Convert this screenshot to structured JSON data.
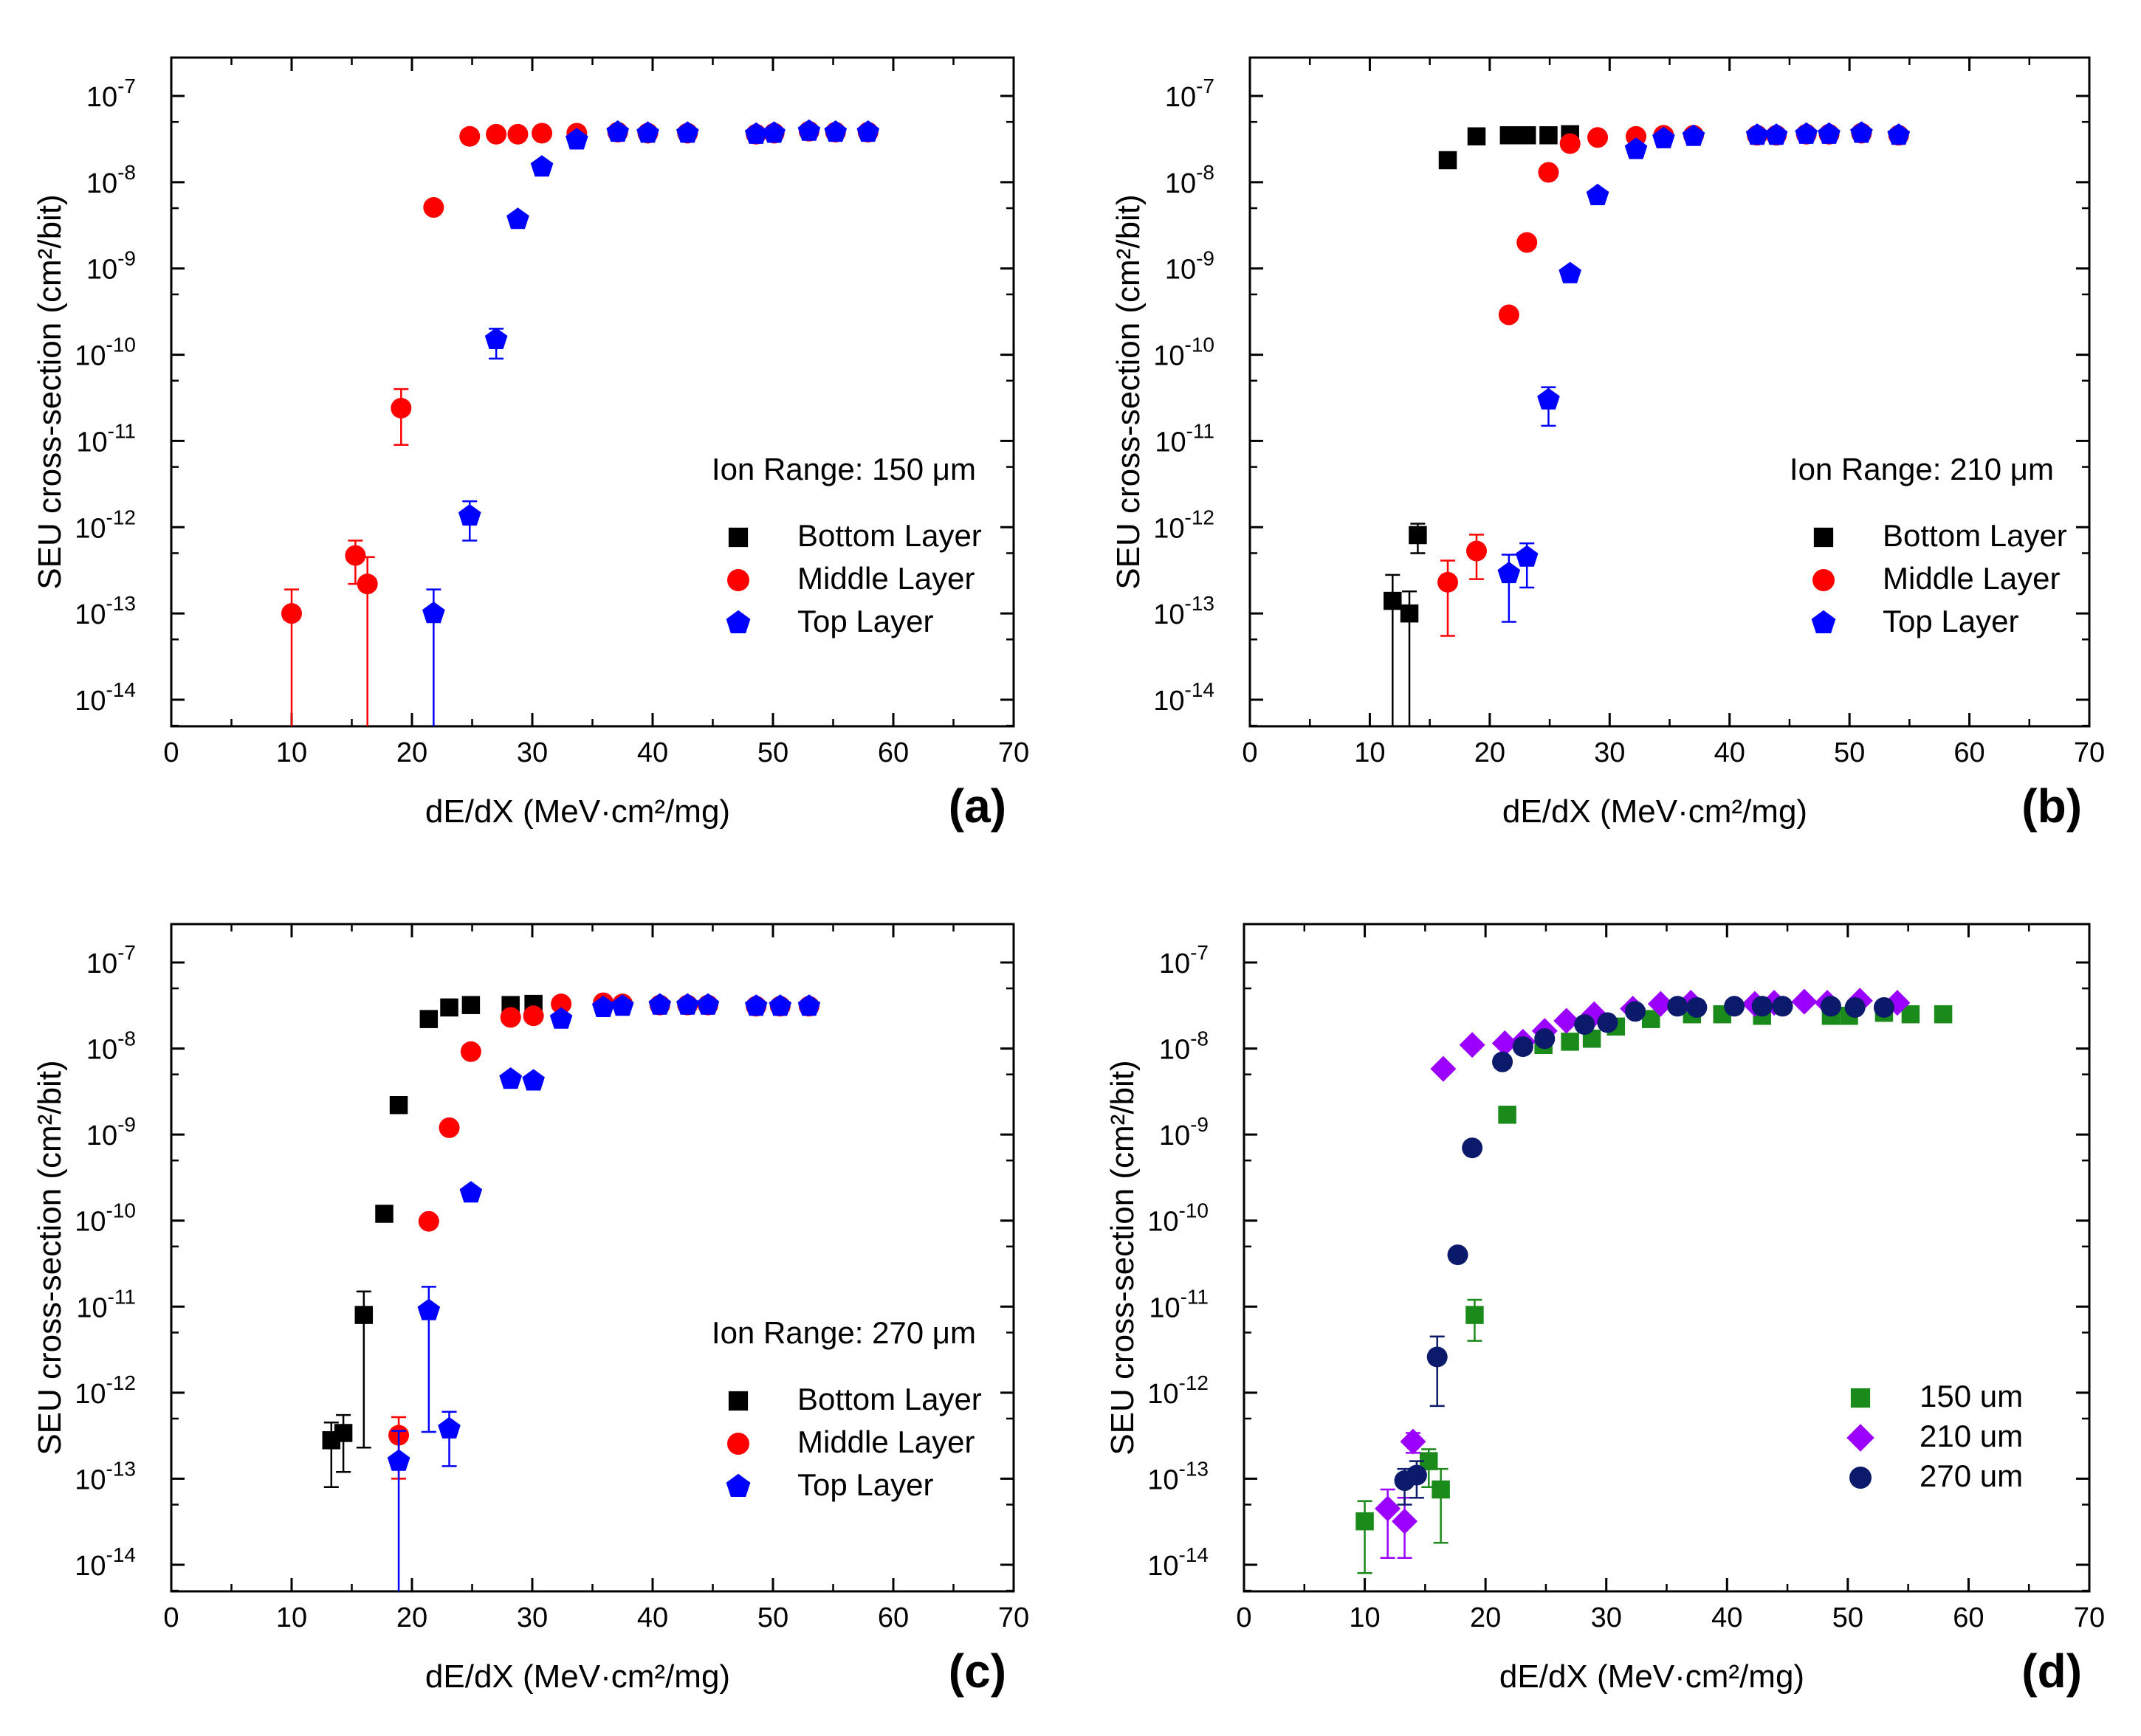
{
  "chart_data": [
    {
      "type": "scatter",
      "panel_label": "(a)",
      "annotation": "Ion Range: 150 μm",
      "xlabel": "dE/dX (MeV·cm²/mg)",
      "ylabel": "SEU cross-section (cm²/bit)",
      "xlim": [
        0,
        70
      ],
      "ylim": [
        5e-15,
        2e-07
      ],
      "yscale": "log",
      "legend_position": "lower-right",
      "series": [
        {
          "name": "Bottom Layer",
          "marker": "square",
          "color": "#000000",
          "points": []
        },
        {
          "name": "Middle Layer",
          "marker": "circle",
          "color": "#ff0000",
          "points": [
            {
              "x": 10,
              "y": 1e-13,
              "err_lo": 0,
              "err_hi": 1.9e-13
            },
            {
              "x": 15.3,
              "y": 4.7e-13,
              "err_lo": 2.2e-13,
              "err_hi": 7e-13
            },
            {
              "x": 16.3,
              "y": 2.2e-13,
              "err_lo": 0,
              "err_hi": 4.5e-13
            },
            {
              "x": 19.1,
              "y": 2.4e-11,
              "err_lo": 9e-12,
              "err_hi": 4e-11
            },
            {
              "x": 21.8,
              "y": 5.1e-09
            },
            {
              "x": 24.8,
              "y": 3.4e-08
            },
            {
              "x": 27.0,
              "y": 3.6e-08
            },
            {
              "x": 28.8,
              "y": 3.6e-08
            },
            {
              "x": 30.8,
              "y": 3.7e-08
            },
            {
              "x": 33.7,
              "y": 3.7e-08
            },
            {
              "x": 37.1,
              "y": 3.8e-08
            },
            {
              "x": 39.6,
              "y": 3.7e-08
            },
            {
              "x": 42.9,
              "y": 3.7e-08
            },
            {
              "x": 48.6,
              "y": 3.6e-08
            },
            {
              "x": 50.1,
              "y": 3.7e-08
            },
            {
              "x": 53.0,
              "y": 3.9e-08
            },
            {
              "x": 55.2,
              "y": 3.8e-08
            },
            {
              "x": 57.9,
              "y": 3.8e-08
            }
          ]
        },
        {
          "name": "Top Layer",
          "marker": "pentagon",
          "color": "#0000ff",
          "points": [
            {
              "x": 21.8,
              "y": 1e-13,
              "err_lo": 0,
              "err_hi": 1.9e-13
            },
            {
              "x": 24.8,
              "y": 1.35e-12,
              "err_lo": 7e-13,
              "err_hi": 2e-12
            },
            {
              "x": 27.0,
              "y": 1.5e-10,
              "err_lo": 9e-11,
              "err_hi": 2e-10
            },
            {
              "x": 28.8,
              "y": 3.7e-09
            },
            {
              "x": 30.8,
              "y": 1.5e-08
            },
            {
              "x": 33.7,
              "y": 3.1e-08
            },
            {
              "x": 37.1,
              "y": 3.8e-08
            },
            {
              "x": 39.6,
              "y": 3.7e-08
            },
            {
              "x": 42.9,
              "y": 3.7e-08
            },
            {
              "x": 48.6,
              "y": 3.6e-08
            },
            {
              "x": 50.1,
              "y": 3.7e-08
            },
            {
              "x": 53.0,
              "y": 3.9e-08
            },
            {
              "x": 55.2,
              "y": 3.8e-08
            },
            {
              "x": 57.9,
              "y": 3.8e-08
            }
          ]
        }
      ]
    },
    {
      "type": "scatter",
      "panel_label": "(b)",
      "annotation": "Ion Range: 210 μm",
      "xlabel": "dE/dX (MeV·cm²/mg)",
      "ylabel": "SEU cross-section (cm²/bit)",
      "xlim": [
        0,
        70
      ],
      "ylim": [
        5e-15,
        2e-07
      ],
      "yscale": "log",
      "legend_position": "lower-right",
      "series": [
        {
          "name": "Bottom Layer",
          "marker": "square",
          "color": "#000000",
          "points": [
            {
              "x": 11.9,
              "y": 1.4e-13,
              "err_lo": 0,
              "err_hi": 2.8e-13
            },
            {
              "x": 13.3,
              "y": 1e-13,
              "err_lo": 0,
              "err_hi": 1.8e-13
            },
            {
              "x": 14.0,
              "y": 8.1e-13,
              "err_lo": 5e-13,
              "err_hi": 1.1e-12
            },
            {
              "x": 16.5,
              "y": 1.8e-08
            },
            {
              "x": 18.9,
              "y": 3.4e-08
            },
            {
              "x": 21.6,
              "y": 3.5e-08
            },
            {
              "x": 23.1,
              "y": 3.5e-08
            },
            {
              "x": 24.9,
              "y": 3.5e-08
            },
            {
              "x": 26.7,
              "y": 3.6e-08
            }
          ]
        },
        {
          "name": "Middle Layer",
          "marker": "circle",
          "color": "#ff0000",
          "points": [
            {
              "x": 16.5,
              "y": 2.3e-13,
              "err_lo": 5.5e-14,
              "err_hi": 4.1e-13
            },
            {
              "x": 18.9,
              "y": 5.3e-13,
              "err_lo": 2.5e-13,
              "err_hi": 8.2e-13
            },
            {
              "x": 21.6,
              "y": 2.9e-10
            },
            {
              "x": 23.1,
              "y": 2e-09
            },
            {
              "x": 24.9,
              "y": 1.3e-08
            },
            {
              "x": 26.7,
              "y": 2.8e-08
            },
            {
              "x": 29.0,
              "y": 3.3e-08
            },
            {
              "x": 32.2,
              "y": 3.4e-08
            },
            {
              "x": 34.5,
              "y": 3.5e-08
            },
            {
              "x": 37.0,
              "y": 3.5e-08
            },
            {
              "x": 42.3,
              "y": 3.5e-08
            },
            {
              "x": 43.9,
              "y": 3.5e-08
            },
            {
              "x": 46.4,
              "y": 3.6e-08
            },
            {
              "x": 48.3,
              "y": 3.6e-08
            },
            {
              "x": 51.0,
              "y": 3.7e-08
            },
            {
              "x": 54.1,
              "y": 3.5e-08
            }
          ]
        },
        {
          "name": "Top Layer",
          "marker": "pentagon",
          "color": "#0000ff",
          "points": [
            {
              "x": 21.6,
              "y": 2.9e-13,
              "err_lo": 8e-14,
              "err_hi": 4.8e-13
            },
            {
              "x": 23.1,
              "y": 4.5e-13,
              "err_lo": 2e-13,
              "err_hi": 6.5e-13
            },
            {
              "x": 24.9,
              "y": 3e-11,
              "err_lo": 1.5e-11,
              "err_hi": 4.2e-11
            },
            {
              "x": 26.7,
              "y": 8.7e-10
            },
            {
              "x": 29.0,
              "y": 7e-09
            },
            {
              "x": 32.2,
              "y": 2.4e-08
            },
            {
              "x": 34.5,
              "y": 3.2e-08
            },
            {
              "x": 37.0,
              "y": 3.4e-08
            },
            {
              "x": 42.3,
              "y": 3.5e-08
            },
            {
              "x": 43.9,
              "y": 3.5e-08
            },
            {
              "x": 46.4,
              "y": 3.6e-08
            },
            {
              "x": 48.3,
              "y": 3.6e-08
            },
            {
              "x": 51.0,
              "y": 3.7e-08
            },
            {
              "x": 54.1,
              "y": 3.5e-08
            }
          ]
        }
      ]
    },
    {
      "type": "scatter",
      "panel_label": "(c)",
      "annotation": "Ion Range: 270 μm",
      "xlabel": "dE/dX (MeV·cm²/mg)",
      "ylabel": "SEU cross-section (cm²/bit)",
      "xlim": [
        0,
        70
      ],
      "ylim": [
        5e-15,
        2e-07
      ],
      "yscale": "log",
      "legend_position": "lower-right",
      "series": [
        {
          "name": "Bottom Layer",
          "marker": "square",
          "color": "#000000",
          "points": [
            {
              "x": 13.3,
              "y": 2.8e-13,
              "err_lo": 8e-14,
              "err_hi": 4.5e-13
            },
            {
              "x": 14.3,
              "y": 3.4e-13,
              "err_lo": 1.2e-13,
              "err_hi": 5.5e-13
            },
            {
              "x": 16.0,
              "y": 8e-12,
              "err_lo": 2.3e-13,
              "err_hi": 1.5e-11
            },
            {
              "x": 17.7,
              "y": 1.2e-10
            },
            {
              "x": 18.9,
              "y": 2.2e-09
            },
            {
              "x": 21.4,
              "y": 2.2e-08
            },
            {
              "x": 23.1,
              "y": 3e-08
            },
            {
              "x": 24.9,
              "y": 3.2e-08
            },
            {
              "x": 28.2,
              "y": 3.2e-08
            },
            {
              "x": 30.1,
              "y": 3.3e-08
            }
          ]
        },
        {
          "name": "Middle Layer",
          "marker": "circle",
          "color": "#ff0000",
          "points": [
            {
              "x": 18.9,
              "y": 3.2e-13,
              "err_lo": 1e-13,
              "err_hi": 5.2e-13
            },
            {
              "x": 21.4,
              "y": 9.8e-11
            },
            {
              "x": 23.1,
              "y": 1.2e-09
            },
            {
              "x": 24.9,
              "y": 9.2e-09
            },
            {
              "x": 28.2,
              "y": 2.3e-08
            },
            {
              "x": 30.1,
              "y": 2.4e-08
            },
            {
              "x": 32.4,
              "y": 3.3e-08
            },
            {
              "x": 35.9,
              "y": 3.4e-08
            },
            {
              "x": 37.5,
              "y": 3.3e-08
            },
            {
              "x": 40.6,
              "y": 3.2e-08
            },
            {
              "x": 42.9,
              "y": 3.2e-08
            },
            {
              "x": 44.6,
              "y": 3.2e-08
            },
            {
              "x": 48.6,
              "y": 3.1e-08
            },
            {
              "x": 50.6,
              "y": 3.1e-08
            },
            {
              "x": 53.0,
              "y": 3.1e-08
            }
          ]
        },
        {
          "name": "Top Layer",
          "marker": "pentagon",
          "color": "#0000ff",
          "points": [
            {
              "x": 18.9,
              "y": 1.6e-13,
              "err_lo": 0,
              "err_hi": 3.6e-13
            },
            {
              "x": 21.4,
              "y": 9e-12,
              "err_lo": 3.5e-13,
              "err_hi": 1.7e-11
            },
            {
              "x": 23.1,
              "y": 3.8e-13,
              "err_lo": 1.4e-13,
              "err_hi": 6e-13
            },
            {
              "x": 24.9,
              "y": 2.1e-10
            },
            {
              "x": 28.2,
              "y": 4.4e-09
            },
            {
              "x": 30.1,
              "y": 4.2e-09
            },
            {
              "x": 32.4,
              "y": 2.2e-08
            },
            {
              "x": 35.9,
              "y": 3e-08
            },
            {
              "x": 37.5,
              "y": 3.1e-08
            },
            {
              "x": 40.6,
              "y": 3.2e-08
            },
            {
              "x": 42.9,
              "y": 3.2e-08
            },
            {
              "x": 44.6,
              "y": 3.2e-08
            },
            {
              "x": 48.6,
              "y": 3.1e-08
            },
            {
              "x": 50.6,
              "y": 3.1e-08
            },
            {
              "x": 53.0,
              "y": 3.1e-08
            }
          ]
        }
      ]
    },
    {
      "type": "scatter",
      "panel_label": "(d)",
      "annotation": "",
      "xlabel": "dE/dX (MeV·cm²/mg)",
      "ylabel": "SEU cross-section (cm²/bit)",
      "xlim": [
        0,
        70
      ],
      "ylim": [
        5e-15,
        2e-07
      ],
      "yscale": "log",
      "legend_position": "lower-right",
      "series": [
        {
          "name": "150 um",
          "marker": "square",
          "color": "#1a8a1a",
          "points": [
            {
              "x": 10.0,
              "y": 3.2e-14,
              "err_lo": 8e-15,
              "err_hi": 5.5e-14
            },
            {
              "x": 15.3,
              "y": 1.6e-13,
              "err_lo": 8e-14,
              "err_hi": 2.2e-13
            },
            {
              "x": 16.3,
              "y": 7.5e-14,
              "err_lo": 1.8e-14,
              "err_hi": 1.3e-13
            },
            {
              "x": 19.1,
              "y": 8e-12,
              "err_lo": 4e-12,
              "err_hi": 1.2e-11
            },
            {
              "x": 21.8,
              "y": 1.7e-09
            },
            {
              "x": 24.8,
              "y": 1.1e-08
            },
            {
              "x": 27.0,
              "y": 1.2e-08
            },
            {
              "x": 28.8,
              "y": 1.3e-08
            },
            {
              "x": 30.8,
              "y": 1.8e-08
            },
            {
              "x": 33.7,
              "y": 2.2e-08
            },
            {
              "x": 37.1,
              "y": 2.5e-08
            },
            {
              "x": 39.6,
              "y": 2.5e-08
            },
            {
              "x": 42.9,
              "y": 2.4e-08
            },
            {
              "x": 48.6,
              "y": 2.4e-08
            },
            {
              "x": 50.1,
              "y": 2.4e-08
            },
            {
              "x": 53.0,
              "y": 2.6e-08
            },
            {
              "x": 55.2,
              "y": 2.5e-08
            },
            {
              "x": 57.9,
              "y": 2.5e-08
            }
          ]
        },
        {
          "name": "210 um",
          "marker": "diamond",
          "color": "#9b00ff",
          "points": [
            {
              "x": 11.9,
              "y": 4.5e-14,
              "err_lo": 1.2e-14,
              "err_hi": 7.5e-14
            },
            {
              "x": 13.3,
              "y": 3.2e-14,
              "err_lo": 1.2e-14,
              "err_hi": 6e-14
            },
            {
              "x": 14.0,
              "y": 2.7e-13,
              "err_lo": 2e-13,
              "err_hi": 3.4e-13
            },
            {
              "x": 16.5,
              "y": 5.8e-09
            },
            {
              "x": 18.9,
              "y": 1.1e-08
            },
            {
              "x": 21.6,
              "y": 1.15e-08
            },
            {
              "x": 23.1,
              "y": 1.2e-08
            },
            {
              "x": 24.9,
              "y": 1.6e-08
            },
            {
              "x": 26.7,
              "y": 2.1e-08
            },
            {
              "x": 29.0,
              "y": 2.5e-08
            },
            {
              "x": 32.2,
              "y": 2.9e-08
            },
            {
              "x": 34.5,
              "y": 3.3e-08
            },
            {
              "x": 37.0,
              "y": 3.4e-08
            },
            {
              "x": 42.3,
              "y": 3.3e-08
            },
            {
              "x": 43.9,
              "y": 3.4e-08
            },
            {
              "x": 46.4,
              "y": 3.5e-08
            },
            {
              "x": 48.3,
              "y": 3.4e-08
            },
            {
              "x": 51.0,
              "y": 3.6e-08
            },
            {
              "x": 54.1,
              "y": 3.4e-08
            }
          ]
        },
        {
          "name": "270 um",
          "marker": "circle",
          "color": "#0c1a6b",
          "points": [
            {
              "x": 13.3,
              "y": 9.5e-14,
              "err_lo": 5e-14,
              "err_hi": 1.3e-13
            },
            {
              "x": 14.3,
              "y": 1.1e-13,
              "err_lo": 6e-14,
              "err_hi": 1.6e-13
            },
            {
              "x": 16.0,
              "y": 2.6e-12,
              "err_lo": 7e-13,
              "err_hi": 4.5e-12
            },
            {
              "x": 17.7,
              "y": 4e-11
            },
            {
              "x": 18.9,
              "y": 7e-10
            },
            {
              "x": 21.4,
              "y": 7e-09
            },
            {
              "x": 23.1,
              "y": 1.05e-08
            },
            {
              "x": 24.9,
              "y": 1.3e-08
            },
            {
              "x": 28.2,
              "y": 1.9e-08
            },
            {
              "x": 30.1,
              "y": 2e-08
            },
            {
              "x": 32.4,
              "y": 2.7e-08
            },
            {
              "x": 35.9,
              "y": 3.1e-08
            },
            {
              "x": 37.5,
              "y": 3e-08
            },
            {
              "x": 40.6,
              "y": 3.1e-08
            },
            {
              "x": 42.9,
              "y": 3.1e-08
            },
            {
              "x": 44.6,
              "y": 3.1e-08
            },
            {
              "x": 48.6,
              "y": 3.1e-08
            },
            {
              "x": 50.6,
              "y": 3e-08
            },
            {
              "x": 53.0,
              "y": 3e-08
            }
          ]
        }
      ]
    }
  ],
  "x_ticks": [
    "0",
    "10",
    "20",
    "30",
    "40",
    "50",
    "60",
    "70"
  ],
  "y_ticks": [
    {
      "mantissa": "10",
      "exponent": "-7"
    },
    {
      "mantissa": "10",
      "exponent": "-8"
    },
    {
      "mantissa": "10",
      "exponent": "-9"
    },
    {
      "mantissa": "10",
      "exponent": "-10"
    },
    {
      "mantissa": "10",
      "exponent": "-11"
    },
    {
      "mantissa": "10",
      "exponent": "-12"
    },
    {
      "mantissa": "10",
      "exponent": "-13"
    },
    {
      "mantissa": "10",
      "exponent": "-14"
    }
  ],
  "colors": {
    "bottom_layer": "#000000",
    "middle_layer": "#ff0000",
    "top_layer": "#0000ff",
    "range_150": "#1a8a1a",
    "range_210": "#9b00ff",
    "range_270": "#0c1a6b"
  }
}
